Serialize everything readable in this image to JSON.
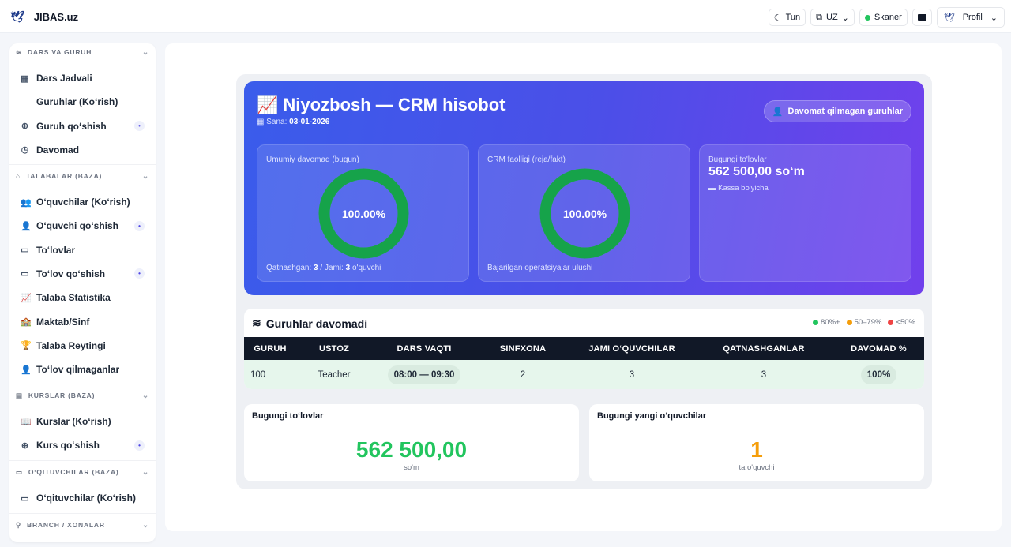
{
  "header": {
    "brand": "JIBAS.uz",
    "theme": "Tun",
    "lang": "UZ",
    "scanner": "Skaner",
    "profile": "Profil"
  },
  "sidebar": {
    "sections": [
      {
        "title": "DARS VA GURUH",
        "items": [
          {
            "label": "Dars Jadvali",
            "icon": "calendar-icon"
          },
          {
            "label": "Guruhlar (Ko‘rish)",
            "icon": ""
          },
          {
            "label": "Guruh qo‘shish",
            "icon": "plus-circle-icon",
            "badge": true
          },
          {
            "label": "Davomad",
            "icon": "clock-icon"
          }
        ]
      },
      {
        "title": "TALABALAR (BAZA)",
        "items": [
          {
            "label": "O‘quvchilar (Ko‘rish)",
            "icon": "users-icon"
          },
          {
            "label": "O‘quvchi qo‘shish",
            "icon": "user-plus-icon",
            "badge": true
          },
          {
            "label": "To‘lovlar",
            "icon": "money-icon"
          },
          {
            "label": "To‘lov qo‘shish",
            "icon": "money-plus-icon",
            "badge": true
          },
          {
            "label": "Talaba Statistika",
            "icon": "chart-line-icon"
          },
          {
            "label": "Maktab/Sinf",
            "icon": "school-icon"
          },
          {
            "label": "Talaba Reytingi",
            "icon": "trophy-icon"
          },
          {
            "label": "To‘lov qilmaganlar",
            "icon": "user-x-icon"
          }
        ]
      },
      {
        "title": "KURSLAR (BAZA)",
        "items": [
          {
            "label": "Kurslar (Ko‘rish)",
            "icon": "book-icon"
          },
          {
            "label": "Kurs qo‘shish",
            "icon": "plus-circle-icon",
            "badge": true
          }
        ]
      },
      {
        "title": "O‘QITUVCHILAR (BAZA)",
        "items": [
          {
            "label": "O‘qituvchilar (Ko‘rish)",
            "icon": "teacher-icon"
          }
        ]
      },
      {
        "title": "BRANCH / XONALAR",
        "items": []
      }
    ]
  },
  "hero": {
    "title": "Niyozbosh — CRM hisobot",
    "date_label": "Sana:",
    "date": "03-01-2026",
    "button": "Davomat qilmagan guruhlar",
    "cards": [
      {
        "label": "Umumiy davomad (bugun)",
        "value": "100.00%",
        "percent": 100,
        "f1": "Qatnashgan:",
        "f2": "3",
        "f3": "/ Jami:",
        "f4": "3",
        "f5": "o'quvchi"
      },
      {
        "label": "CRM faolligi (reja/fakt)",
        "value": "100.00%",
        "percent": 100,
        "footer": "Bajarilgan operatsiyalar ulushi"
      },
      {
        "label": "Bugungi to'lovlar",
        "value": "562 500,00 so‘m",
        "sub": "Kassa bo'yicha"
      }
    ]
  },
  "groups": {
    "title": "Guruhlar davomadi",
    "legend": [
      {
        "label": "80%+",
        "color": "#22c55e"
      },
      {
        "label": "50–79%",
        "color": "#f59e0b"
      },
      {
        "label": "<50%",
        "color": "#ef4444"
      }
    ],
    "columns": [
      "GURUH",
      "USTOZ",
      "DARS VAQTI",
      "SINFXONA",
      "JAMI O‘QUVCHILAR",
      "QATNASHGANLAR",
      "DAVOMAD %"
    ],
    "rows": [
      [
        "100",
        "Teacher",
        "08:00 — 09:30",
        "2",
        "3",
        "3",
        "100%"
      ]
    ]
  },
  "payments": {
    "title": "Bugungi to‘lovlar",
    "value": "562 500,00",
    "unit": "so'm",
    "color": "#22c55e"
  },
  "new_students": {
    "title": "Bugungi yangi o‘quvchilar",
    "value": "1",
    "unit": "ta o'quvchi",
    "color": "#f59e0b"
  }
}
